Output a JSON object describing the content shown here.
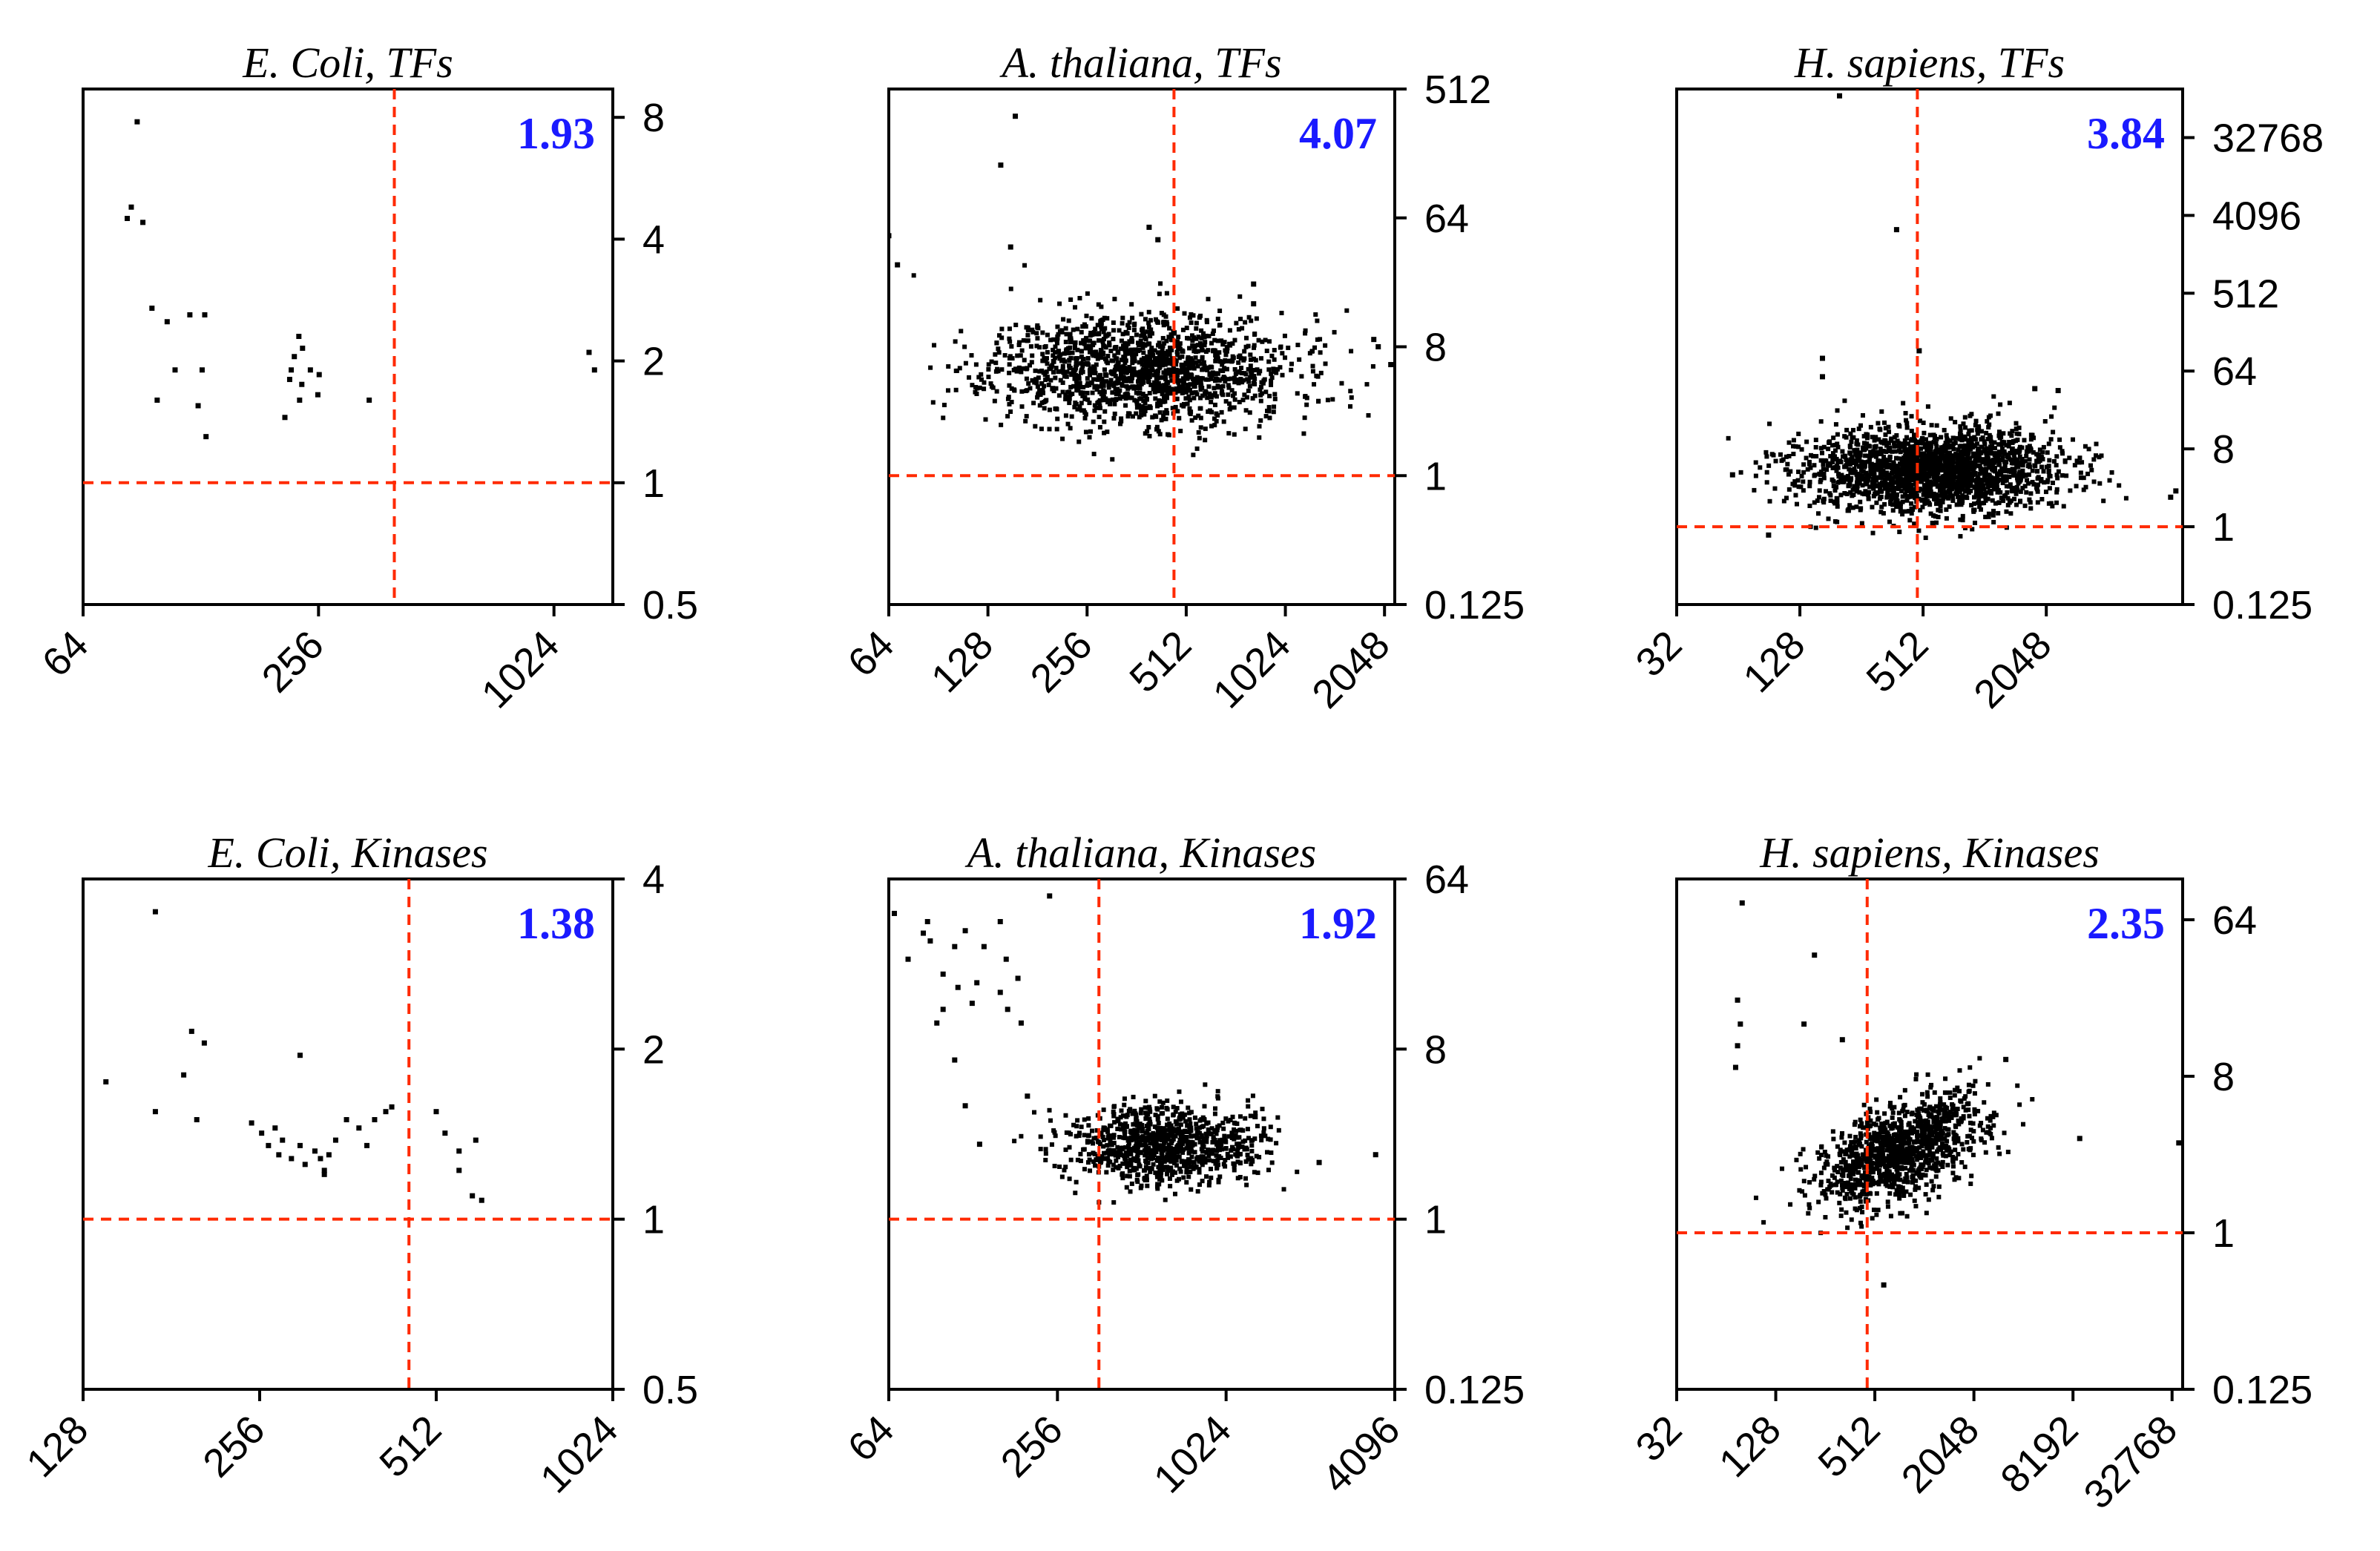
{
  "colors": {
    "axis": "#000000",
    "reference_line": "#ff2a00",
    "stat_text": "#1a1aff",
    "point": "#000000"
  },
  "chart_data": [
    {
      "type": "scatter",
      "title": "E. Coli, TFs",
      "stat_value": "1.93",
      "x_scale": "log2",
      "y_scale": "log2",
      "xlim": [
        64,
        1448
      ],
      "ylim": [
        0.5,
        9.4
      ],
      "x_ticks": [
        64,
        256,
        1024
      ],
      "x_tick_labels": [
        "64",
        "256",
        "1024"
      ],
      "y_ticks": [
        0.5,
        1,
        2,
        4,
        8
      ],
      "y_tick_labels": [
        "0.5",
        "1",
        "2",
        "4",
        "8"
      ],
      "ref_x": 400,
      "ref_y": 1,
      "points": [
        [
          88,
          7.8
        ],
        [
          85,
          4.8
        ],
        [
          83,
          4.5
        ],
        [
          91,
          4.4
        ],
        [
          96,
          2.7
        ],
        [
          105,
          2.5
        ],
        [
          120,
          2.6
        ],
        [
          131,
          2.6
        ],
        [
          110,
          1.9
        ],
        [
          129,
          1.9
        ],
        [
          99,
          1.6
        ],
        [
          126,
          1.55
        ],
        [
          132,
          1.3
        ],
        [
          228,
          2.3
        ],
        [
          233,
          2.15
        ],
        [
          222,
          2.05
        ],
        [
          218,
          1.9
        ],
        [
          244,
          1.9
        ],
        [
          257,
          1.85
        ],
        [
          216,
          1.8
        ],
        [
          232,
          1.75
        ],
        [
          255,
          1.65
        ],
        [
          229,
          1.6
        ],
        [
          210,
          1.45
        ],
        [
          345,
          1.6
        ],
        [
          1259,
          2.1
        ],
        [
          1300,
          1.9
        ]
      ]
    },
    {
      "type": "scatter",
      "title": "A. thaliana, TFs",
      "stat_value": "4.07",
      "x_scale": "log2",
      "y_scale": "log2",
      "xlim": [
        64,
        2200
      ],
      "ylim": [
        0.125,
        512
      ],
      "x_ticks": [
        64,
        128,
        256,
        512,
        1024,
        2048
      ],
      "x_tick_labels": [
        "64",
        "128",
        "256",
        "512",
        "1024",
        "2048"
      ],
      "y_ticks": [
        0.125,
        1,
        8,
        64,
        512
      ],
      "y_tick_labels": [
        "0.125",
        "1",
        "8",
        "64",
        "512"
      ],
      "ref_x": 470,
      "ref_y": 1,
      "cloud": {
        "count": 1500,
        "seed": 11,
        "gx": 380,
        "gy": 5.5,
        "sx": 0.75,
        "sy": 0.65
      },
      "points": [
        [
          64,
          48
        ],
        [
          68,
          30
        ],
        [
          155,
          330
        ],
        [
          140,
          150
        ],
        [
          150,
          40
        ],
        [
          395,
          55
        ],
        [
          420,
          45
        ],
        [
          820,
          16
        ],
        [
          820,
          22
        ],
        [
          1900,
          9
        ],
        [
          1960,
          8
        ],
        [
          2140,
          6
        ]
      ]
    },
    {
      "type": "scatter",
      "title": "H. sapiens, TFs",
      "stat_value": "3.84",
      "x_scale": "log2",
      "y_scale": "log2",
      "xlim": [
        32,
        9500
      ],
      "ylim": [
        0.125,
        120000
      ],
      "x_ticks": [
        32,
        128,
        512,
        2048
      ],
      "x_tick_labels": [
        "32",
        "128",
        "512",
        "2048"
      ],
      "y_ticks": [
        0.125,
        1,
        8,
        64,
        512,
        4096,
        32768
      ],
      "y_tick_labels": [
        "0.125",
        "1",
        "8",
        "64",
        "512",
        "4096",
        "32768"
      ],
      "ref_x": 480,
      "ref_y": 1,
      "cloud": {
        "count": 1900,
        "seed": 23,
        "gx": 560,
        "gy": 4.5,
        "sx": 1.05,
        "sy": 0.8
      },
      "points": [
        [
          200,
          100000
        ],
        [
          380,
          2800
        ],
        [
          490,
          110
        ],
        [
          165,
          90
        ],
        [
          165,
          55
        ],
        [
          60,
          4
        ],
        [
          1800,
          40
        ],
        [
          2340,
          38
        ],
        [
          8300,
          2.2
        ],
        [
          8800,
          2.6
        ],
        [
          90,
          0.8
        ]
      ]
    },
    {
      "type": "scatter",
      "title": "E. Coli, Kinases",
      "stat_value": "1.38",
      "x_scale": "log2",
      "y_scale": "log2",
      "xlim": [
        128,
        1024
      ],
      "ylim": [
        0.5,
        4
      ],
      "x_ticks": [
        128,
        256,
        512,
        1024
      ],
      "x_tick_labels": [
        "128",
        "256",
        "512",
        "1024"
      ],
      "y_ticks": [
        0.5,
        1,
        2,
        4
      ],
      "y_tick_labels": [
        "0.5",
        "1",
        "2",
        "4"
      ],
      "ref_x": 460,
      "ref_y": 1,
      "points": [
        [
          170,
          3.5
        ],
        [
          140,
          1.75
        ],
        [
          170,
          1.55
        ],
        [
          196,
          2.15
        ],
        [
          206,
          2.05
        ],
        [
          190,
          1.8
        ],
        [
          200,
          1.5
        ],
        [
          300,
          1.95
        ],
        [
          248,
          1.48
        ],
        [
          258,
          1.42
        ],
        [
          265,
          1.35
        ],
        [
          272,
          1.45
        ],
        [
          280,
          1.38
        ],
        [
          276,
          1.3
        ],
        [
          290,
          1.28
        ],
        [
          300,
          1.35
        ],
        [
          306,
          1.25
        ],
        [
          318,
          1.32
        ],
        [
          325,
          1.28
        ],
        [
          330,
          1.22
        ],
        [
          336,
          1.3
        ],
        [
          345,
          1.38
        ],
        [
          360,
          1.5
        ],
        [
          378,
          1.45
        ],
        [
          402,
          1.5
        ],
        [
          420,
          1.55
        ],
        [
          430,
          1.58
        ],
        [
          390,
          1.35
        ],
        [
          330,
          1.2
        ],
        [
          512,
          1.55
        ],
        [
          530,
          1.42
        ],
        [
          560,
          1.32
        ],
        [
          598,
          1.38
        ],
        [
          560,
          1.22
        ],
        [
          590,
          1.1
        ],
        [
          612,
          1.08
        ]
      ]
    },
    {
      "type": "scatter",
      "title": "A. thaliana, Kinases",
      "stat_value": "1.92",
      "x_scale": "log2",
      "y_scale": "log2",
      "xlim": [
        64,
        4096
      ],
      "ylim": [
        0.125,
        64
      ],
      "x_ticks": [
        64,
        256,
        1024,
        4096
      ],
      "x_tick_labels": [
        "64",
        "256",
        "1024",
        "4096"
      ],
      "y_ticks": [
        0.125,
        1,
        8,
        64
      ],
      "y_tick_labels": [
        "0.125",
        "1",
        "8",
        "64"
      ],
      "ref_x": 360,
      "ref_y": 1,
      "cloud": {
        "count": 900,
        "seed": 37,
        "gx": 620,
        "gy": 2.5,
        "sx": 0.55,
        "sy": 0.35
      },
      "points": [
        [
          67,
          42
        ],
        [
          85,
          33
        ],
        [
          90,
          30
        ],
        [
          88,
          38
        ],
        [
          120,
          34
        ],
        [
          160,
          38
        ],
        [
          240,
          52
        ],
        [
          110,
          28
        ],
        [
          140,
          28
        ],
        [
          168,
          24
        ],
        [
          75,
          24
        ],
        [
          100,
          20
        ],
        [
          113,
          17
        ],
        [
          127,
          14
        ],
        [
          100,
          13
        ],
        [
          95,
          11
        ],
        [
          170,
          13
        ],
        [
          190,
          11
        ],
        [
          185,
          19
        ],
        [
          160,
          16
        ],
        [
          132,
          18
        ],
        [
          110,
          7
        ],
        [
          200,
          4.5
        ],
        [
          120,
          4
        ],
        [
          135,
          2.5
        ],
        [
          2200,
          2
        ],
        [
          3500,
          2.2
        ],
        [
          1300,
          3.5
        ]
      ]
    },
    {
      "type": "scatter",
      "title": "H. sapiens, Kinases",
      "stat_value": "2.35",
      "x_scale": "log2",
      "y_scale": "log2",
      "xlim": [
        32,
        38000
      ],
      "ylim": [
        0.125,
        110
      ],
      "x_ticks": [
        32,
        128,
        512,
        2048,
        8192,
        32768
      ],
      "x_tick_labels": [
        "32",
        "128",
        "512",
        "2048",
        "8192",
        "32768"
      ],
      "y_ticks": [
        0.125,
        1,
        8,
        64
      ],
      "y_tick_labels": [
        "0.125",
        "1",
        "8",
        "64"
      ],
      "ref_x": 460,
      "ref_y": 1,
      "cloud": {
        "count": 1100,
        "seed": 53,
        "gx": 750,
        "gy": 3.0,
        "sx": 0.85,
        "sy": 0.55,
        "corr": 0.55
      },
      "points": [
        [
          80,
          80
        ],
        [
          220,
          40
        ],
        [
          75,
          22
        ],
        [
          78,
          16
        ],
        [
          75,
          12
        ],
        [
          73,
          9
        ],
        [
          190,
          16
        ],
        [
          325,
          13
        ],
        [
          3200,
          10
        ],
        [
          9000,
          3.5
        ],
        [
          36000,
          3.3
        ],
        [
          580,
          0.5
        ]
      ]
    }
  ]
}
